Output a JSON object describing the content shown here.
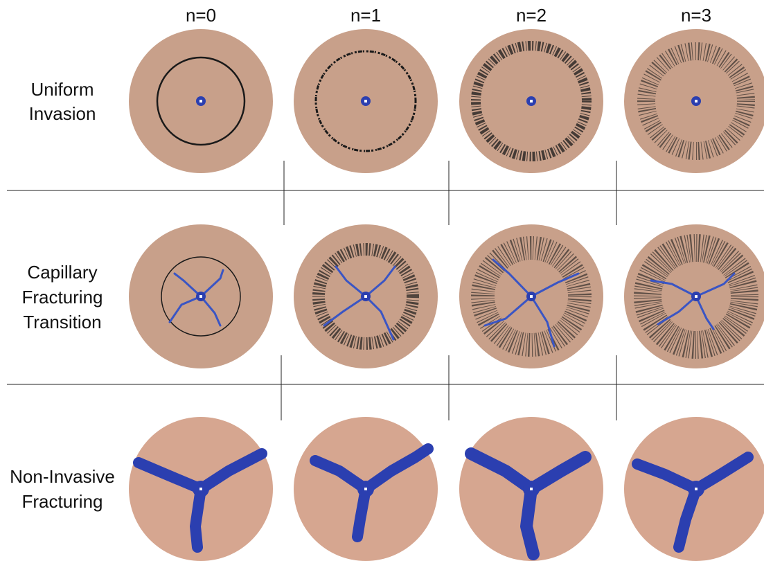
{
  "columns": [
    "n=0",
    "n=1",
    "n=2",
    "n=3"
  ],
  "rows": [
    {
      "lines": [
        "Uniform",
        "Invasion"
      ]
    },
    {
      "lines": [
        "Capillary",
        "Fracturing",
        "Transition"
      ]
    },
    {
      "lines": [
        "Non-Invasive",
        "Fracturing"
      ]
    }
  ]
}
